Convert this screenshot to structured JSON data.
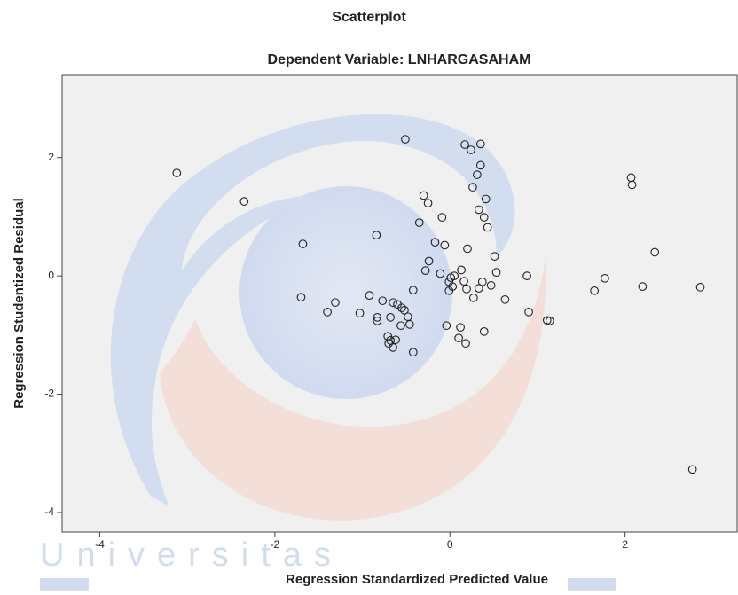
{
  "chart_data": {
    "type": "scatter",
    "title": "Scatterplot",
    "subtitle": "Dependent Variable: LNHARGASAHAM",
    "xlabel": "Regression Standardized Predicted Value",
    "ylabel": "Regression Studentized Residual",
    "watermark": "Universitas",
    "x": [
      -3.12,
      -2.35,
      -1.68,
      -1.7,
      -1.31,
      -1.4,
      -1.03,
      -0.84,
      -0.92,
      -0.83,
      -0.83,
      -0.77,
      -0.68,
      -0.65,
      -0.6,
      -0.55,
      -0.52,
      -0.48,
      -0.46,
      -0.56,
      -0.71,
      -0.68,
      -0.62,
      -0.7,
      -0.65,
      -0.42,
      -0.51,
      -0.42,
      -0.35,
      -0.3,
      -0.25,
      -0.24,
      -0.28,
      -0.17,
      -0.11,
      -0.09,
      -0.06,
      -0.04,
      -0.01,
      0.01,
      0.03,
      -0.01,
      0.05,
      0.13,
      0.12,
      0.1,
      0.17,
      0.24,
      0.35,
      0.35,
      0.31,
      0.26,
      0.41,
      0.33,
      0.39,
      0.43,
      0.2,
      0.16,
      0.19,
      0.18,
      0.27,
      0.33,
      0.37,
      0.47,
      0.51,
      0.53,
      0.39,
      0.63,
      0.88,
      0.9,
      1.11,
      1.14,
      1.65,
      1.77,
      2.07,
      2.08,
      2.2,
      2.34,
      2.86,
      2.77
    ],
    "values": [
      1.74,
      1.26,
      0.54,
      -0.36,
      -0.45,
      -0.61,
      -0.63,
      0.69,
      -0.33,
      -0.7,
      -0.76,
      -0.42,
      -0.7,
      -0.45,
      -0.48,
      -0.54,
      -0.58,
      -0.69,
      -0.82,
      -0.84,
      -1.02,
      -1.09,
      -1.08,
      -1.14,
      -1.21,
      -1.29,
      2.31,
      -0.24,
      0.9,
      1.36,
      1.23,
      0.25,
      0.09,
      0.57,
      0.04,
      0.99,
      0.52,
      -0.84,
      -0.1,
      -0.03,
      -0.18,
      -0.25,
      0.0,
      0.1,
      -0.87,
      -1.05,
      2.22,
      2.13,
      2.23,
      1.87,
      1.71,
      1.5,
      1.3,
      1.12,
      0.99,
      0.82,
      0.46,
      -0.09,
      -0.22,
      -1.14,
      -0.37,
      -0.21,
      -0.1,
      -0.16,
      0.33,
      0.06,
      -0.94,
      -0.4,
      0.0,
      -0.61,
      -0.75,
      -0.76,
      -0.25,
      -0.04,
      1.66,
      1.54,
      -0.18,
      0.4,
      -0.19,
      -3.27
    ],
    "color": "#222222",
    "xlim": [
      -4.43,
      3.28
    ],
    "ylim": [
      -4.33,
      3.39
    ],
    "xticks": [
      -4,
      -2,
      0,
      2
    ],
    "yticks": [
      -4,
      -2,
      0,
      2
    ]
  }
}
